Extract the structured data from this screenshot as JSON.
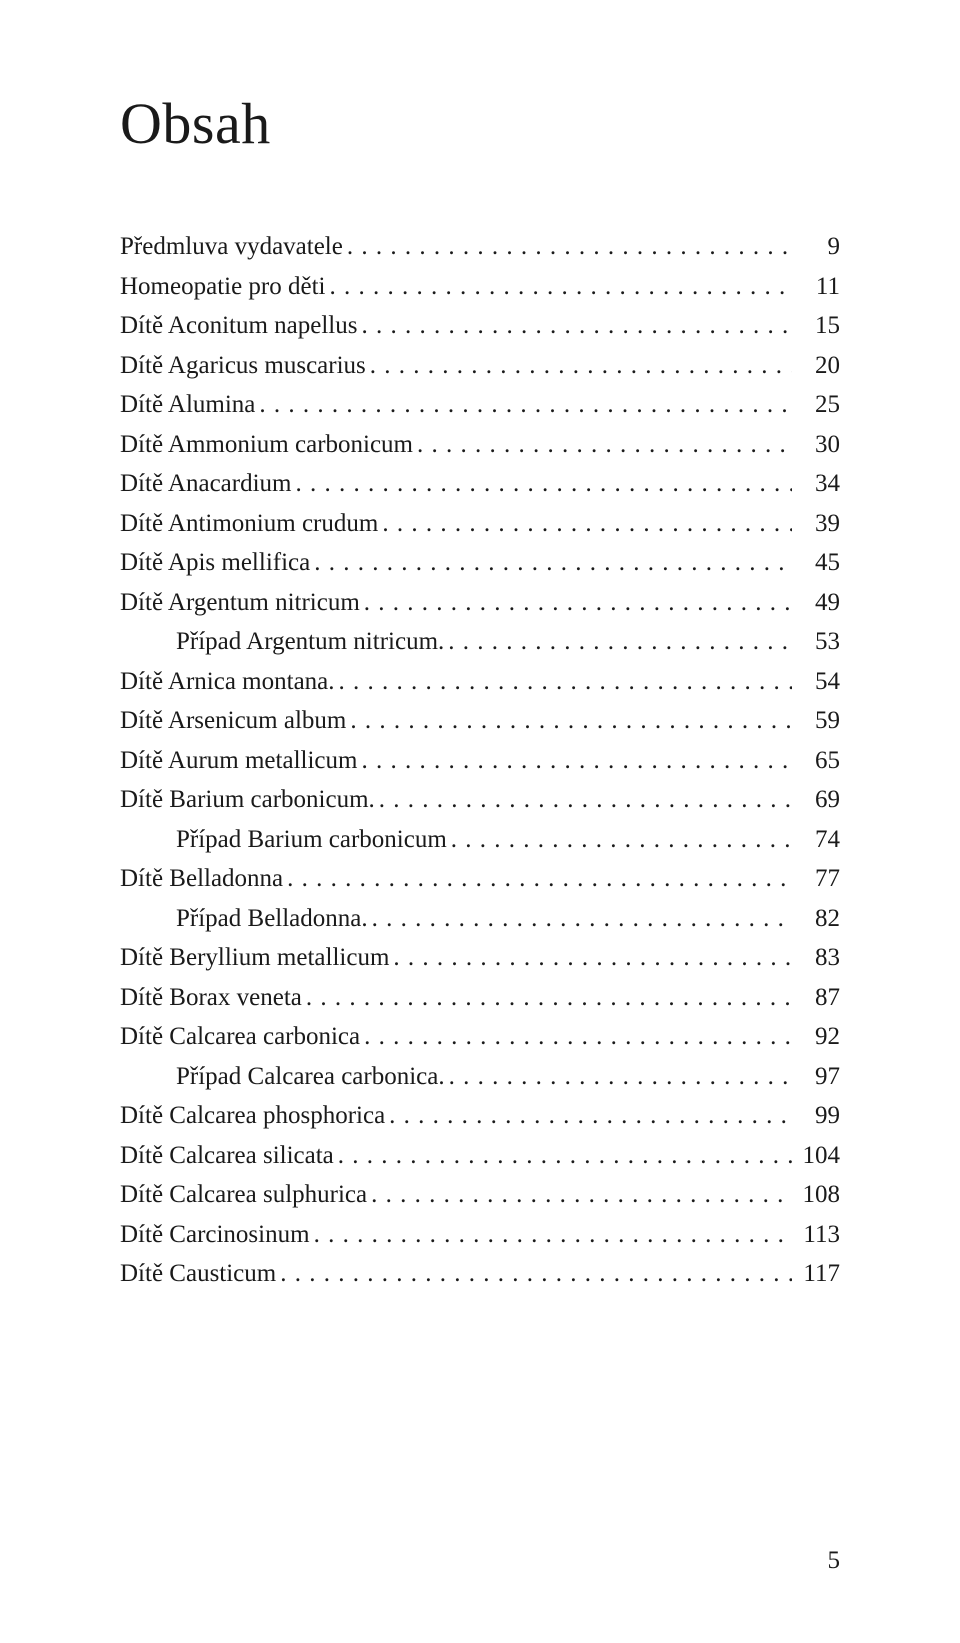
{
  "title": "Obsah",
  "page_number": "5",
  "colors": {
    "background": "#ffffff",
    "text": "#1a1a1a"
  },
  "typography": {
    "title_fontsize_pt": 44,
    "body_fontsize_pt": 19,
    "font_family": "serif",
    "line_height": 1.58
  },
  "entries": [
    {
      "label": "Předmluva vydavatele",
      "page": "9",
      "indent": false
    },
    {
      "label": "Homeopatie pro děti",
      "page": "11",
      "indent": false
    },
    {
      "label": "Dítě Aconitum napellus",
      "page": "15",
      "indent": false
    },
    {
      "label": "Dítě Agaricus muscarius",
      "page": "20",
      "indent": false
    },
    {
      "label": "Dítě Alumina",
      "page": "25",
      "indent": false
    },
    {
      "label": "Dítě Ammonium carbonicum",
      "page": "30",
      "indent": false
    },
    {
      "label": "Dítě Anacardium",
      "page": "34",
      "indent": false
    },
    {
      "label": "Dítě Antimonium crudum",
      "page": "39",
      "indent": false
    },
    {
      "label": "Dítě Apis mellifica",
      "page": "45",
      "indent": false
    },
    {
      "label": "Dítě Argentum nitricum",
      "page": "49",
      "indent": false
    },
    {
      "label": "Případ Argentum nitricum.",
      "page": "53",
      "indent": true
    },
    {
      "label": "Dítě Arnica montana.",
      "page": "54",
      "indent": false
    },
    {
      "label": "Dítě Arsenicum album",
      "page": "59",
      "indent": false
    },
    {
      "label": "Dítě Aurum metallicum",
      "page": "65",
      "indent": false
    },
    {
      "label": "Dítě Barium carbonicum.",
      "page": "69",
      "indent": false
    },
    {
      "label": "Případ Barium carbonicum",
      "page": "74",
      "indent": true
    },
    {
      "label": "Dítě Belladonna",
      "page": "77",
      "indent": false
    },
    {
      "label": "Případ Belladonna.",
      "page": "82",
      "indent": true
    },
    {
      "label": "Dítě Beryllium metallicum",
      "page": "83",
      "indent": false
    },
    {
      "label": "Dítě Borax veneta",
      "page": "87",
      "indent": false
    },
    {
      "label": "Dítě Calcarea carbonica",
      "page": "92",
      "indent": false
    },
    {
      "label": "Případ Calcarea carbonica.",
      "page": "97",
      "indent": true
    },
    {
      "label": "Dítě Calcarea phosphorica",
      "page": "99",
      "indent": false
    },
    {
      "label": "Dítě Calcarea silicata",
      "page": "104",
      "indent": false
    },
    {
      "label": "Dítě Calcarea sulphurica",
      "page": "108",
      "indent": false
    },
    {
      "label": "Dítě Carcinosinum",
      "page": "113",
      "indent": false
    },
    {
      "label": "Dítě Causticum",
      "page": "117",
      "indent": false
    }
  ]
}
